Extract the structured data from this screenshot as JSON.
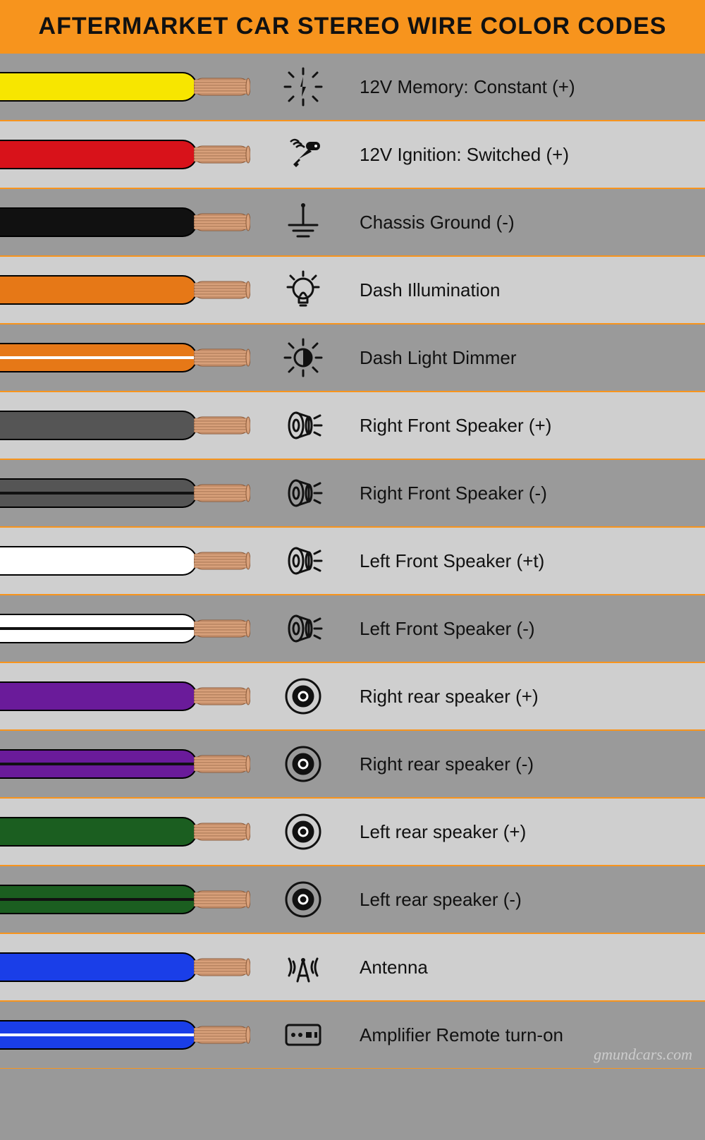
{
  "title": "AFTERMARKET CAR STEREO WIRE COLOR CODES",
  "title_bg": "#f7941d",
  "title_color": "#111111",
  "title_fontsize": 34,
  "row_border_color": "#f7941d",
  "row_bg_alt": [
    "#9a9a9a",
    "#cfcfcf"
  ],
  "copper_color": "#d8a07a",
  "copper_stroke": "#8a5a3a",
  "watermark": "gmundcars.com",
  "rows": [
    {
      "label": "12V Memory: Constant (+)",
      "jacket": "#f7e600",
      "stripe": null,
      "icon": "spark"
    },
    {
      "label": "12V Ignition: Switched (+)",
      "jacket": "#d8121a",
      "stripe": null,
      "icon": "key"
    },
    {
      "label": "Chassis Ground (-)",
      "jacket": "#111111",
      "stripe": null,
      "icon": "ground"
    },
    {
      "label": "Dash Illumination",
      "jacket": "#e67817",
      "stripe": null,
      "icon": "bulb"
    },
    {
      "label": "Dash Light Dimmer",
      "jacket": "#e67817",
      "stripe": "#ffffff",
      "icon": "dimmer"
    },
    {
      "label": "Right Front Speaker (+)",
      "jacket": "#555555",
      "stripe": null,
      "icon": "speaker_side"
    },
    {
      "label": "Right Front Speaker (-)",
      "jacket": "#555555",
      "stripe": "#111111",
      "icon": "speaker_side"
    },
    {
      "label": "Left Front Speaker (+t)",
      "jacket": "#ffffff",
      "stripe": null,
      "icon": "speaker_side"
    },
    {
      "label": "Left Front Speaker (-)",
      "jacket": "#ffffff",
      "stripe": "#111111",
      "icon": "speaker_side"
    },
    {
      "label": "Right rear speaker (+)",
      "jacket": "#6a1b9a",
      "stripe": null,
      "icon": "speaker_round"
    },
    {
      "label": "Right rear speaker (-)",
      "jacket": "#6a1b9a",
      "stripe": "#111111",
      "icon": "speaker_round"
    },
    {
      "label": "Left rear speaker (+)",
      "jacket": "#1b5e20",
      "stripe": null,
      "icon": "speaker_round"
    },
    {
      "label": "Left rear speaker (-)",
      "jacket": "#1b5e20",
      "stripe": "#111111",
      "icon": "speaker_round"
    },
    {
      "label": "Antenna",
      "jacket": "#1a3ee8",
      "stripe": null,
      "icon": "antenna"
    },
    {
      "label": "Amplifier Remote turn-on",
      "jacket": "#1a3ee8",
      "stripe": "#ffffff",
      "icon": "amp"
    }
  ]
}
